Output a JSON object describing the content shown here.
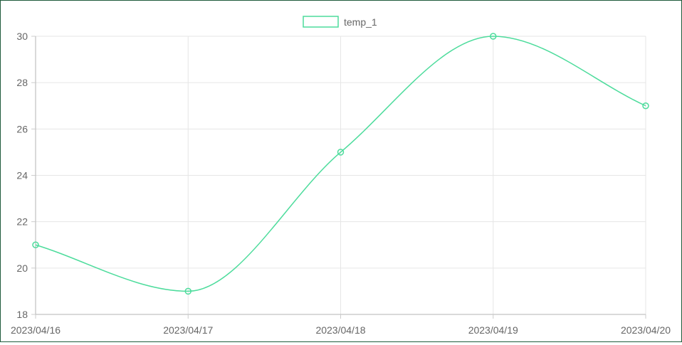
{
  "chart_data": {
    "type": "line",
    "categories": [
      "2023/04/16",
      "2023/04/17",
      "2023/04/18",
      "2023/04/19",
      "2023/04/20"
    ],
    "series": [
      {
        "name": "temp_1",
        "values": [
          21,
          19,
          25,
          30,
          27
        ],
        "color": "#4ddc9c"
      }
    ],
    "ylim": [
      18,
      30
    ],
    "yticks": [
      18,
      20,
      22,
      24,
      26,
      28,
      30
    ],
    "grid": true,
    "legend": "top-center",
    "smooth": true
  }
}
